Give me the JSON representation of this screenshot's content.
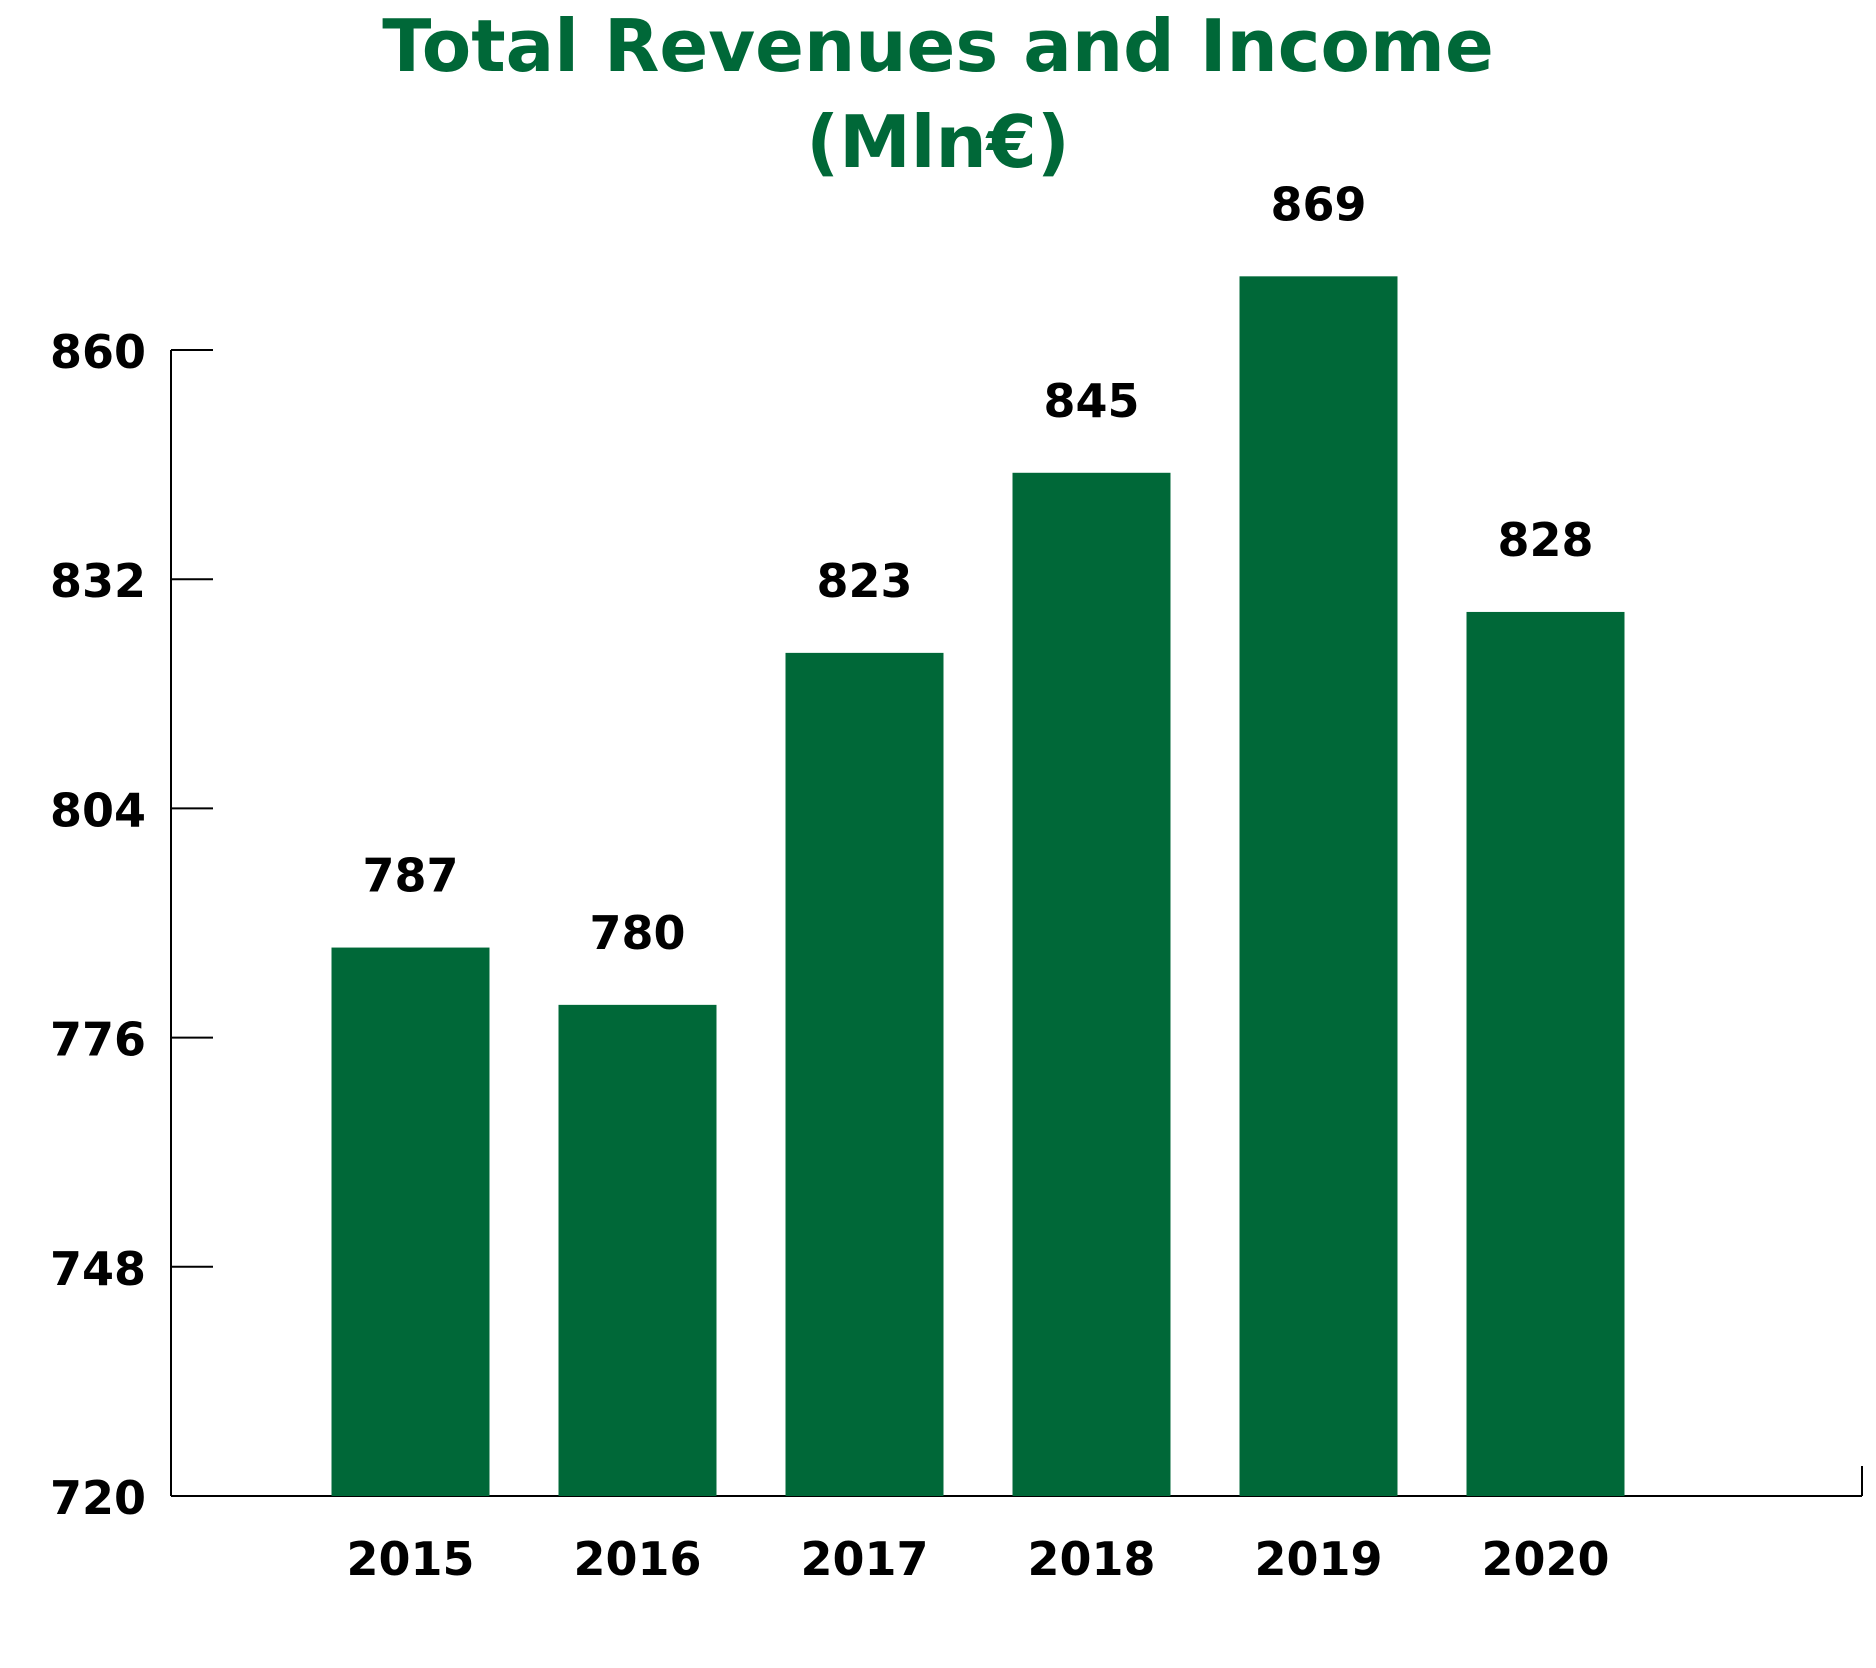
{
  "chart_data": {
    "type": "bar",
    "title": "Total Revenues and Income",
    "subtitle": "(Mln€)",
    "xlabel": "",
    "ylabel": "",
    "categories": [
      "2015",
      "2016",
      "2017",
      "2018",
      "2019",
      "2020"
    ],
    "values": [
      787,
      780,
      823,
      845,
      869,
      828
    ],
    "yticks": [
      720,
      748,
      776,
      804,
      832,
      860
    ],
    "ylim": [
      720,
      860
    ],
    "grid": false,
    "legend": "none",
    "bar_color": "#006838",
    "axis_color": "#000000"
  }
}
